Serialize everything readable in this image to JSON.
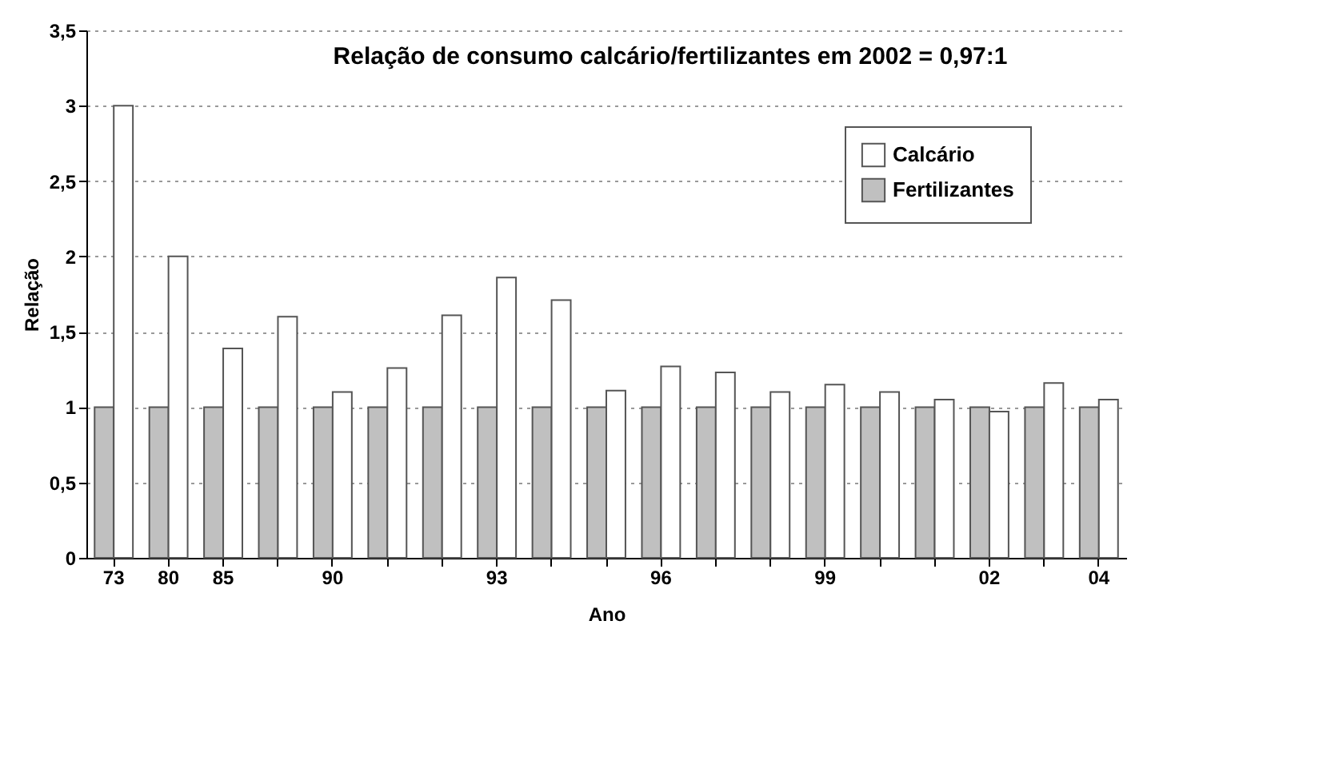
{
  "chart_data": {
    "type": "bar",
    "title": "Relação de consumo calcário/fertilizantes em 2002 = 0,97:1",
    "xlabel": "Ano",
    "ylabel": "Relação",
    "categories": [
      "73",
      "80",
      "85",
      null,
      "90",
      null,
      null,
      "93",
      null,
      null,
      "96",
      null,
      null,
      "99",
      null,
      null,
      "02",
      null,
      "04"
    ],
    "series": [
      {
        "name": "Fertilizantes",
        "color": "#c0c0c0",
        "values": [
          1,
          1,
          1,
          1,
          1,
          1,
          1,
          1,
          1,
          1,
          1,
          1,
          1,
          1,
          1,
          1,
          1,
          1,
          1
        ]
      },
      {
        "name": "Calcário",
        "color": "#ffffff",
        "values": [
          3.0,
          2.0,
          1.39,
          1.6,
          1.1,
          1.26,
          1.61,
          1.86,
          1.71,
          1.11,
          1.27,
          1.23,
          1.1,
          1.15,
          1.1,
          1.05,
          0.97,
          1.16,
          1.05
        ]
      }
    ],
    "ylim": [
      0,
      3.5
    ],
    "yticks": [
      0,
      {
        "value": 0.5,
        "label": "0,5"
      },
      1,
      {
        "value": 1.5,
        "label": "1,5"
      },
      2,
      {
        "value": 2.5,
        "label": "2,5"
      },
      3,
      {
        "value": 3.5,
        "label": "3,5"
      }
    ],
    "grid": "y",
    "legend": "top right"
  }
}
